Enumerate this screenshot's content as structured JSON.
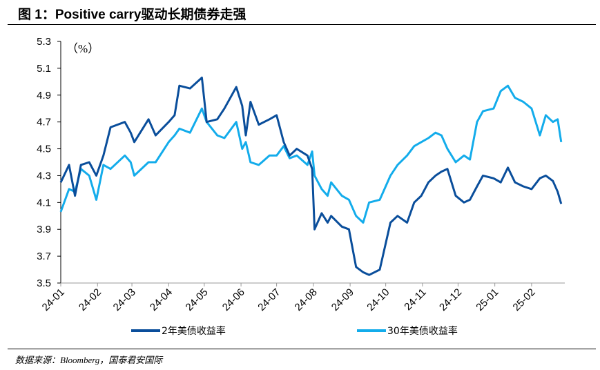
{
  "title": "图 1：Positive carry驱动长期债券走强",
  "source": "数据来源：Bloomberg，国泰君安国际",
  "chart_data": {
    "type": "line",
    "title": "图 1：Positive carry驱动长期债券走强",
    "ylabel": "（%）",
    "ylim": [
      3.5,
      5.3
    ],
    "yticks": [
      3.5,
      3.7,
      3.9,
      4.1,
      4.3,
      4.5,
      4.7,
      4.9,
      5.1,
      5.3
    ],
    "xlim": [
      "2024-01-01",
      "2025-03-01"
    ],
    "xtick_labels": [
      "24-01",
      "24-02",
      "24-03",
      "24-04",
      "24-05",
      "24-06",
      "24-07",
      "24-08",
      "24-09",
      "24-10",
      "24-11",
      "24-12",
      "25-01",
      "25-02"
    ],
    "grid": false,
    "legend_placement": "bottom",
    "x": [
      "2024-01-01",
      "2024-01-08",
      "2024-01-13",
      "2024-01-18",
      "2024-01-25",
      "2024-01-31",
      "2024-02-06",
      "2024-02-12",
      "2024-02-24",
      "2024-02-29",
      "2024-03-03",
      "2024-03-15",
      "2024-03-21",
      "2024-04-01",
      "2024-04-06",
      "2024-04-10",
      "2024-04-19",
      "2024-04-29",
      "2024-05-03",
      "2024-05-12",
      "2024-05-18",
      "2024-05-28",
      "2024-06-02",
      "2024-06-05",
      "2024-06-09",
      "2024-06-16",
      "2024-06-25",
      "2024-07-01",
      "2024-07-07",
      "2024-07-12",
      "2024-07-18",
      "2024-07-27",
      "2024-07-31",
      "2024-08-02",
      "2024-08-08",
      "2024-08-13",
      "2024-08-16",
      "2024-08-25",
      "2024-08-31",
      "2024-09-06",
      "2024-09-12",
      "2024-09-17",
      "2024-09-26",
      "2024-10-05",
      "2024-10-11",
      "2024-10-19",
      "2024-10-25",
      "2024-10-31",
      "2024-11-06",
      "2024-11-12",
      "2024-11-17",
      "2024-11-22",
      "2024-11-29",
      "2024-12-06",
      "2024-12-11",
      "2024-12-17",
      "2024-12-22",
      "2024-12-31",
      "2025-01-06",
      "2025-01-12",
      "2025-01-18",
      "2025-01-25",
      "2025-02-01",
      "2025-02-08",
      "2025-02-13",
      "2025-02-19",
      "2025-02-23",
      "2025-02-26"
    ],
    "series": [
      {
        "name": "2年美债收益率",
        "color": "#0A4E9B",
        "values": [
          4.25,
          4.38,
          4.15,
          4.38,
          4.4,
          4.3,
          4.45,
          4.66,
          4.7,
          4.62,
          4.55,
          4.72,
          4.6,
          4.7,
          4.75,
          4.97,
          4.95,
          5.03,
          4.7,
          4.72,
          4.8,
          4.96,
          4.82,
          4.6,
          4.85,
          4.68,
          4.72,
          4.75,
          4.55,
          4.45,
          4.5,
          4.45,
          4.35,
          3.9,
          4.02,
          3.95,
          4.0,
          3.92,
          3.9,
          3.62,
          3.58,
          3.56,
          3.6,
          3.95,
          4.0,
          3.95,
          4.1,
          4.15,
          4.25,
          4.3,
          4.33,
          4.35,
          4.15,
          4.1,
          4.12,
          4.22,
          4.3,
          4.28,
          4.25,
          4.36,
          4.25,
          4.22,
          4.2,
          4.28,
          4.3,
          4.26,
          4.18,
          4.09
        ]
      },
      {
        "name": "30年美债收益率",
        "color": "#13ACEB",
        "values": [
          4.03,
          4.2,
          4.18,
          4.35,
          4.3,
          4.12,
          4.38,
          4.35,
          4.45,
          4.4,
          4.3,
          4.4,
          4.4,
          4.55,
          4.6,
          4.65,
          4.62,
          4.8,
          4.7,
          4.6,
          4.58,
          4.7,
          4.5,
          4.55,
          4.4,
          4.38,
          4.45,
          4.45,
          4.52,
          4.43,
          4.45,
          4.38,
          4.48,
          4.3,
          4.2,
          4.15,
          4.25,
          4.15,
          4.12,
          4.0,
          3.95,
          4.1,
          4.12,
          4.3,
          4.38,
          4.45,
          4.52,
          4.55,
          4.58,
          4.62,
          4.6,
          4.5,
          4.4,
          4.45,
          4.42,
          4.7,
          4.78,
          4.8,
          4.93,
          4.97,
          4.88,
          4.85,
          4.8,
          4.6,
          4.75,
          4.7,
          4.72,
          4.55
        ]
      }
    ]
  }
}
